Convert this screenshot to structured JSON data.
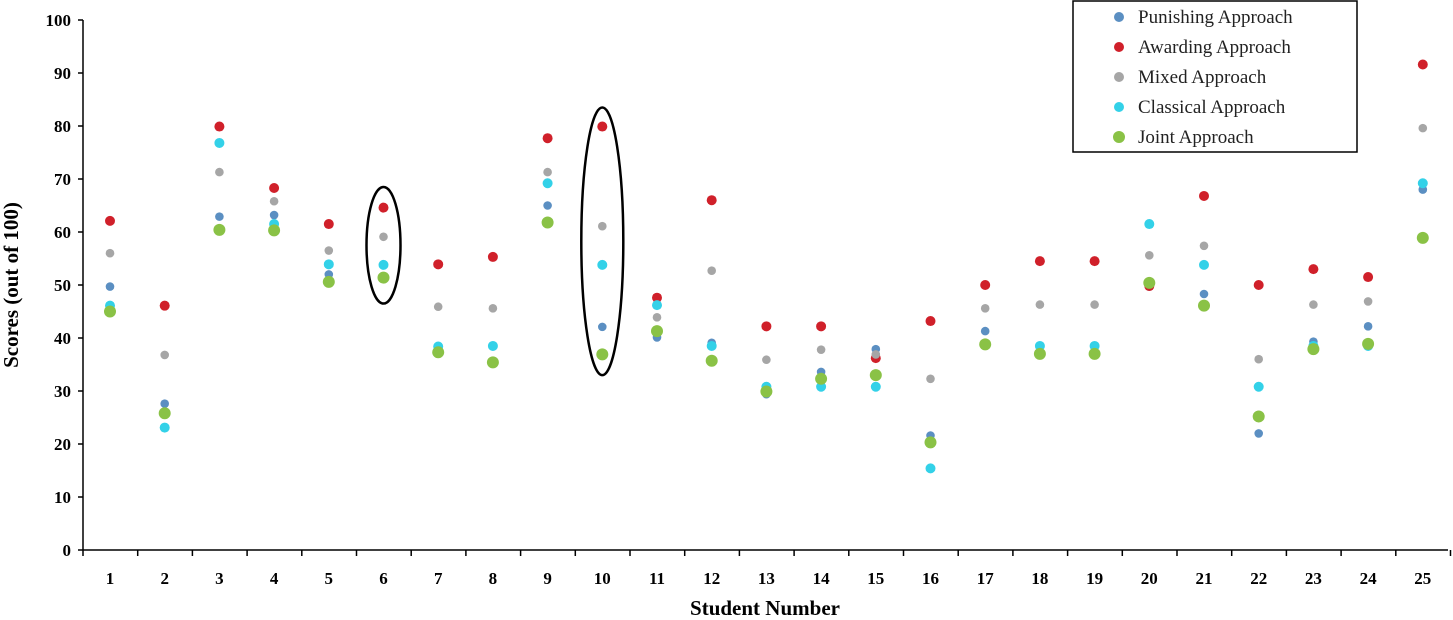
{
  "chart_data": {
    "type": "scatter",
    "title": "",
    "xlabel": "Student Number",
    "ylabel": "Scores (out of 100)",
    "ylim": [
      0,
      100
    ],
    "yticks": [
      0,
      10,
      20,
      30,
      40,
      50,
      60,
      70,
      80,
      90,
      100
    ],
    "categories": [
      "1",
      "2",
      "3",
      "4",
      "5",
      "6",
      "7",
      "8",
      "9",
      "10",
      "11",
      "12",
      "13",
      "14",
      "15",
      "16",
      "17",
      "18",
      "19",
      "20",
      "21",
      "22",
      "23",
      "24",
      "25"
    ],
    "legend_position": "top-right",
    "grid": false,
    "series": [
      {
        "name": "Punishing Approach",
        "color": "#5b8fc2",
        "values": [
          49.7,
          27.6,
          62.9,
          63.2,
          52.0,
          53.8,
          38.3,
          35.5,
          65.0,
          42.1,
          40.1,
          39.1,
          29.4,
          33.6,
          37.9,
          21.6,
          41.3,
          37.0,
          37.0,
          49.7,
          48.3,
          22.0,
          39.3,
          42.2,
          68.0
        ]
      },
      {
        "name": "Awarding Approach",
        "color": "#d0202a",
        "values": [
          62.1,
          46.1,
          79.9,
          68.3,
          61.5,
          64.6,
          53.9,
          55.3,
          77.7,
          79.9,
          47.6,
          66.0,
          42.2,
          42.2,
          36.2,
          43.2,
          50.0,
          54.5,
          54.5,
          49.8,
          66.8,
          50.0,
          53.0,
          51.5,
          91.6
        ]
      },
      {
        "name": "Mixed Approach",
        "color": "#a6a6a6",
        "values": [
          56.0,
          36.8,
          71.3,
          65.8,
          56.5,
          59.1,
          45.9,
          45.6,
          71.3,
          61.1,
          43.9,
          52.7,
          35.9,
          37.8,
          36.9,
          32.3,
          45.6,
          46.3,
          46.3,
          55.6,
          57.4,
          36.0,
          46.3,
          46.9,
          79.6
        ]
      },
      {
        "name": "Classical Approach",
        "color": "#33d1e8",
        "values": [
          46.1,
          23.1,
          76.8,
          61.5,
          53.9,
          53.8,
          38.4,
          38.5,
          69.2,
          53.8,
          46.2,
          38.5,
          30.8,
          30.8,
          30.8,
          15.4,
          38.9,
          38.5,
          38.5,
          61.5,
          53.8,
          30.8,
          38.5,
          38.5,
          69.2
        ]
      },
      {
        "name": "Joint Approach",
        "color": "#8ac246",
        "values": [
          45.0,
          25.8,
          60.4,
          60.3,
          50.6,
          51.4,
          37.3,
          35.4,
          61.8,
          36.9,
          41.3,
          35.7,
          29.9,
          32.3,
          33.0,
          20.3,
          38.8,
          37.0,
          37.0,
          50.4,
          46.1,
          25.2,
          37.9,
          38.9,
          58.9
        ]
      }
    ],
    "annotations": [
      {
        "type": "ellipse",
        "category": "6",
        "y_range": [
          46.5,
          68.5
        ]
      },
      {
        "type": "ellipse",
        "category": "10",
        "y_range": [
          33,
          83.5
        ]
      }
    ]
  }
}
